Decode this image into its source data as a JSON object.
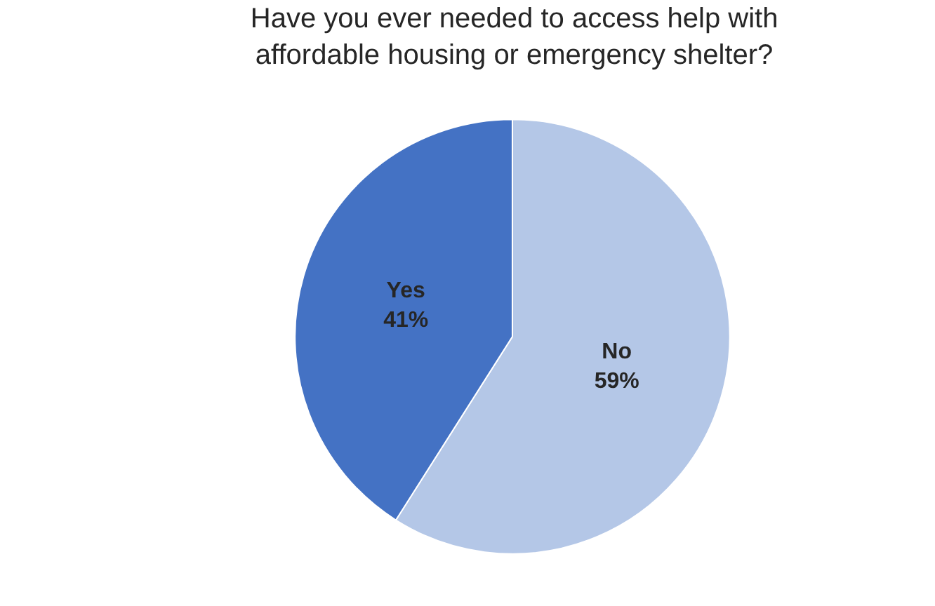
{
  "chart_data": {
    "type": "pie",
    "title": "Have you ever needed to access help with\naffordable housing or emergency shelter?",
    "categories": [
      "No",
      "Yes"
    ],
    "values": [
      59,
      41
    ],
    "value_labels": [
      "59%",
      "41%"
    ],
    "colors": [
      "#b4c7e7",
      "#4472c4"
    ],
    "legend": false
  }
}
